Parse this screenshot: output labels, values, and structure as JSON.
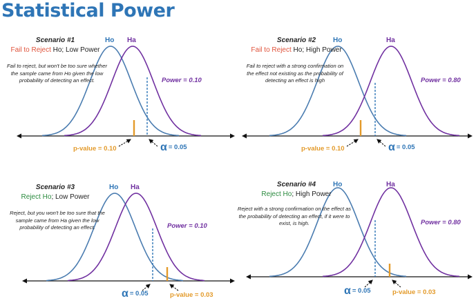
{
  "title": "Statistical Power",
  "colors": {
    "title": "#2e75b6",
    "ho_curve": "#4a7cb0",
    "ha_curve": "#7030a0",
    "alpha_line": "#2e75b6",
    "pvalue_bar": "#e39a2a",
    "fail_to_reject": "#e0533b",
    "reject": "#2a8a3e"
  },
  "curve_labels": {
    "ho": "Ho",
    "ha": "Ha"
  },
  "alpha_symbol": "α",
  "scenarios": [
    {
      "name": "Scenario #1",
      "verdict_decision": "Fail to Reject",
      "verdict_rest": " Ho; Low Power",
      "description": "Fail to reject, but won't be too sure whether the sample came from Ho given the low probability of detecting an effect.",
      "power": "Power = 0.10",
      "p_value": "p-value = 0.10",
      "alpha": "= 0.05"
    },
    {
      "name": "Scenario #2",
      "verdict_decision": "Fail to Reject",
      "verdict_rest": " Ho; High Power",
      "description": "Fail to reject with a strong confirmation on the effect not existing as the probability of detecting an effect is high",
      "power": "Power = 0.80",
      "p_value": "p-value = 0.10",
      "alpha": "= 0.05"
    },
    {
      "name": "Scenario #3",
      "verdict_decision": "Reject Ho",
      "verdict_rest": "; Low Power",
      "description": "Reject, but you won't be too sure that the sample came from Ha given the low probability of detecting an effect.",
      "power": "Power = 0.10",
      "p_value": "p-value = 0.03",
      "alpha": "= 0.05"
    },
    {
      "name": "Scenario #4",
      "verdict_decision": "Reject Ho",
      "verdict_rest": "; High Power",
      "description": "Reject with a strong confirmation on the effect as the probability of detecting an effect, if it were to exist, is high.",
      "power": "Power = 0.80",
      "p_value": "p-value = 0.03",
      "alpha": "= 0.05"
    }
  ]
}
